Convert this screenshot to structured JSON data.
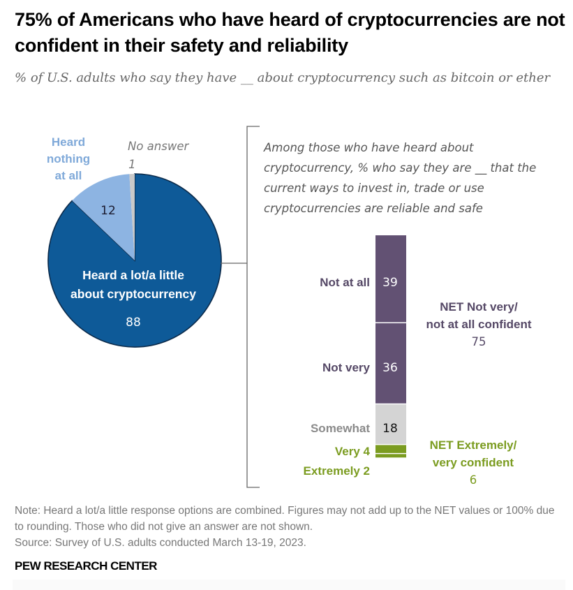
{
  "header": {
    "title": "75% of Americans who have heard of cryptocurrencies are not confident in their safety and reliability",
    "subtitle": "% of U.S. adults who say they have __ about cryptocurrency such as bitcoin or ether"
  },
  "colors": {
    "pie_heard": "#0e5a98",
    "pie_nothing": "#8db4e2",
    "pie_noanswer": "#c9c9c9",
    "pie_stroke": "#0b2a4a",
    "label_nothing": "#7fa9d9",
    "label_noanswer": "#777777",
    "purple": "#625173",
    "purple_text": "#554866",
    "somewhat": "#d4d4d4",
    "somewhat_text": "#8a8a8a",
    "green": "#7b9c20",
    "green_text": "#7b9c20",
    "bracket": "#666666"
  },
  "chart_data": [
    {
      "type": "pie",
      "title": "% of U.S. adults who say they have __ about cryptocurrency such as bitcoin or ether",
      "slices": [
        {
          "label": "Heard a lot/a little about cryptocurrency",
          "value": 88
        },
        {
          "label": "Heard nothing at all",
          "value": 12
        },
        {
          "label": "No answer",
          "value": 1
        }
      ]
    },
    {
      "type": "bar",
      "stacked": true,
      "orientation": "vertical",
      "title": "Among those who have heard about cryptocurrency, % who say they are __ that the current ways to invest in, trade or use cryptocurrencies are reliable and safe",
      "segments": [
        {
          "label": "Not at all",
          "value": 39
        },
        {
          "label": "Not very",
          "value": 36
        },
        {
          "label": "Somewhat",
          "value": 18
        },
        {
          "label": "Very",
          "value": 4
        },
        {
          "label": "Extremely",
          "value": 2
        }
      ],
      "nets": [
        {
          "label": "NET Not very/ not at all confident",
          "value": 75
        },
        {
          "label": "NET Extremely/ very confident",
          "value": 6
        }
      ]
    }
  ],
  "pie_labels": {
    "heard_line1": "Heard a lot/a little",
    "heard_line2": "about cryptocurrency",
    "heard_value": "88",
    "nothing_line1": "Heard",
    "nothing_line2": "nothing",
    "nothing_line3": "at all",
    "nothing_value": "12",
    "noanswer_label": "No answer",
    "noanswer_value": "1"
  },
  "bar_labels": {
    "intro": "Among those who have heard about cryptocurrency, % who say they are __ that the current ways to invest in, trade or use cryptocurrencies are reliable and safe",
    "not_at_all": "Not at all",
    "not_at_all_value": "39",
    "not_very": "Not very",
    "not_very_value": "36",
    "somewhat": "Somewhat",
    "somewhat_value": "18",
    "very": "Very 4",
    "extremely": "Extremely 2",
    "net_not_line1": "NET Not very/",
    "net_not_line2": "not at all confident",
    "net_not_value": "75",
    "net_conf_line1": "NET Extremely/",
    "net_conf_line2": "very confident",
    "net_conf_value": "6"
  },
  "footer": {
    "note": "Note: Heard a lot/a little response options are combined. Figures may not add up to the NET values or 100% due to rounding. Those who did not give an answer are not shown.",
    "source": "Source: Survey of U.S. adults conducted March 13-19, 2023.",
    "brand": "PEW RESEARCH CENTER"
  }
}
